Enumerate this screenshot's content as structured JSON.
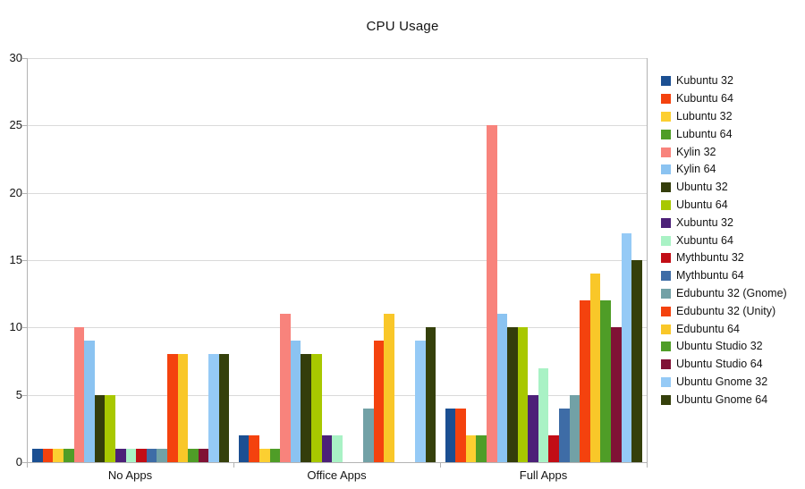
{
  "chart_data": {
    "type": "bar",
    "title": "CPU Usage",
    "categories": [
      "No Apps",
      "Office Apps",
      "Full Apps"
    ],
    "series": [
      {
        "name": "Kubuntu 32",
        "color": "#1B4F92",
        "values": [
          1,
          2,
          4
        ]
      },
      {
        "name": "Kubuntu 64",
        "color": "#F4420E",
        "values": [
          1,
          2,
          4
        ]
      },
      {
        "name": "Lubuntu 32",
        "color": "#FCCF31",
        "values": [
          1,
          1,
          2
        ]
      },
      {
        "name": "Lubuntu 64",
        "color": "#4F9D27",
        "values": [
          1,
          1,
          2
        ]
      },
      {
        "name": "Kylin 32",
        "color": "#F8837C",
        "values": [
          10,
          11,
          25
        ]
      },
      {
        "name": "Kylin 64",
        "color": "#8BC3F1",
        "values": [
          9,
          9,
          11
        ]
      },
      {
        "name": "Ubuntu 32",
        "color": "#343D0B",
        "values": [
          5,
          8,
          10
        ]
      },
      {
        "name": "Ubuntu 64",
        "color": "#A8C800",
        "values": [
          5,
          8,
          10
        ]
      },
      {
        "name": "Xubuntu 32",
        "color": "#4C2178",
        "values": [
          1,
          2,
          5
        ]
      },
      {
        "name": "Xubuntu 64",
        "color": "#A9F2C5",
        "values": [
          1,
          2,
          7
        ]
      },
      {
        "name": "Mythbuntu 32",
        "color": "#C20D16",
        "values": [
          1,
          0,
          2
        ]
      },
      {
        "name": "Mythbuntu 64",
        "color": "#3E6CA6",
        "values": [
          1,
          0,
          4
        ]
      },
      {
        "name": "Edubuntu 32 (Gnome)",
        "color": "#72A1A6",
        "values": [
          1,
          4,
          5
        ]
      },
      {
        "name": "Edubuntu 32 (Unity)",
        "color": "#F4420E",
        "values": [
          8,
          9,
          12
        ]
      },
      {
        "name": "Edubuntu 64",
        "color": "#F9C729",
        "values": [
          8,
          11,
          14
        ]
      },
      {
        "name": "Ubuntu Studio 32",
        "color": "#4F9D27",
        "values": [
          1,
          0,
          12
        ]
      },
      {
        "name": "Ubuntu Studio 64",
        "color": "#801235",
        "values": [
          1,
          0,
          10
        ]
      },
      {
        "name": "Ubuntu Gnome 32",
        "color": "#95CAF6",
        "values": [
          8,
          9,
          17
        ]
      },
      {
        "name": "Ubuntu Gnome 64",
        "color": "#35400B",
        "values": [
          8,
          10,
          15
        ]
      }
    ],
    "ylim": [
      0,
      30
    ],
    "yticks": [
      0,
      5,
      10,
      15,
      20,
      25,
      30
    ],
    "grid": "horizontal",
    "legend_position": "right"
  },
  "style": {
    "grid_color": "#DADADA",
    "axis_color": "#B3B3B3",
    "text_color": "#141414",
    "background": "#FFFFFF"
  }
}
